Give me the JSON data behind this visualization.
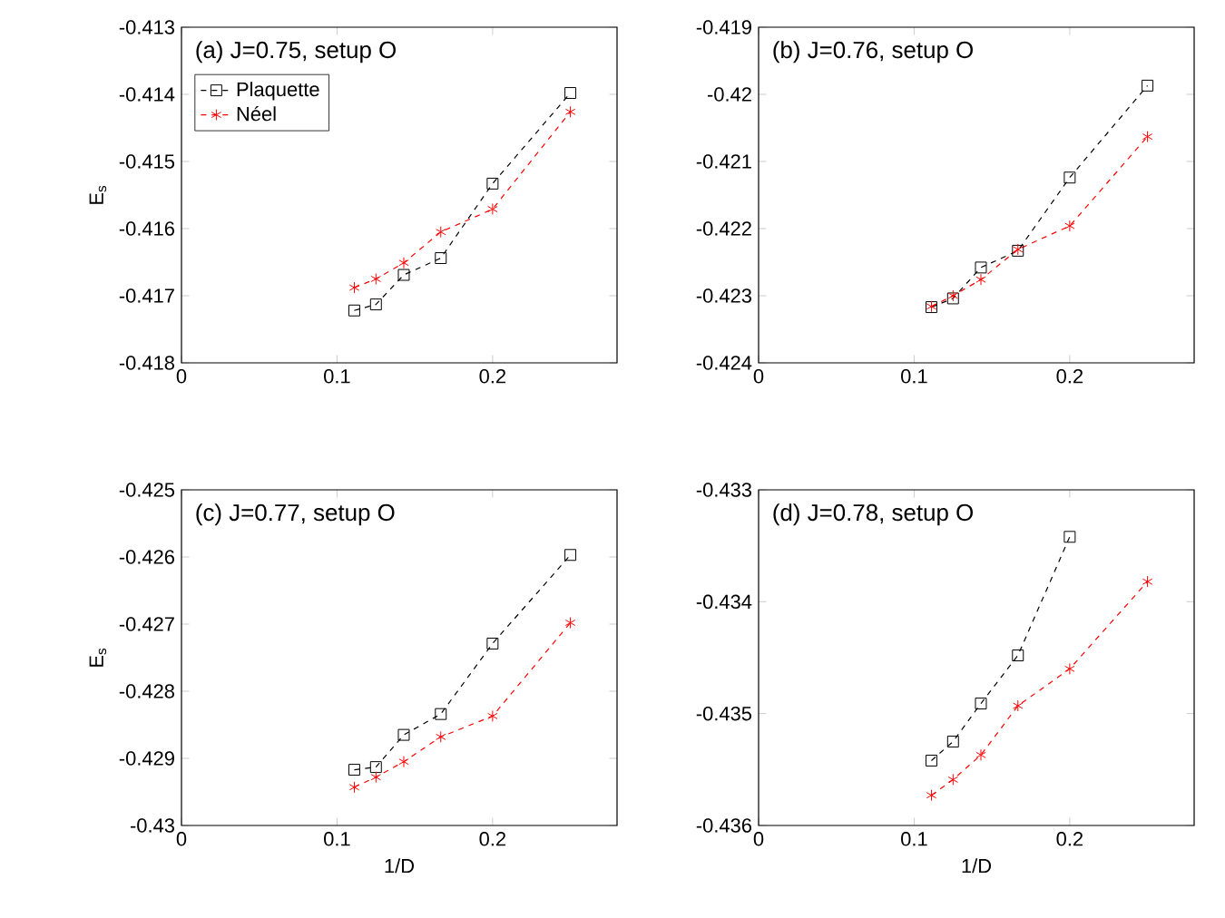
{
  "chart_data": [
    {
      "type": "line",
      "title": "(a) J=0.75, setup O",
      "ylabel": "E$_{s}$",
      "x": [
        0.1111,
        0.125,
        0.1429,
        0.1667,
        0.2,
        0.25
      ],
      "xlim": [
        0,
        0.28
      ],
      "xticks": [
        0,
        0.1,
        0.2
      ],
      "ylim": [
        -0.418,
        -0.413
      ],
      "yticks": [
        -0.418,
        -0.417,
        -0.416,
        -0.415,
        -0.414,
        -0.413
      ],
      "line_style": "dashed",
      "legend": "top left",
      "series": [
        {
          "name": "Plaquette",
          "color": "#000000",
          "marker": "square",
          "values": [
            -0.41722,
            -0.41713,
            -0.41669,
            -0.41644,
            -0.41533,
            -0.41398
          ]
        },
        {
          "name": "Néel",
          "color": "#ff0000",
          "marker": "cross",
          "values": [
            -0.41688,
            -0.41675,
            -0.41651,
            -0.41605,
            -0.41571,
            -0.41426
          ]
        }
      ]
    },
    {
      "type": "line",
      "title": "(b) J=0.76, setup O",
      "x": [
        0.1111,
        0.125,
        0.1429,
        0.1667,
        0.2,
        0.25
      ],
      "xlim": [
        0,
        0.28
      ],
      "xticks": [
        0,
        0.1,
        0.2
      ],
      "ylim": [
        -0.424,
        -0.419
      ],
      "yticks": [
        -0.424,
        -0.423,
        -0.422,
        -0.421,
        -0.42,
        -0.419
      ],
      "line_style": "dashed",
      "series": [
        {
          "color": "#000000",
          "marker": "square",
          "values": [
            -0.42317,
            -0.42304,
            -0.42258,
            -0.42233,
            -0.42124,
            -0.41987
          ]
        },
        {
          "color": "#ff0000",
          "marker": "cross",
          "values": [
            -0.42316,
            -0.423,
            -0.42276,
            -0.42231,
            -0.42196,
            -0.42063
          ]
        }
      ]
    },
    {
      "type": "line",
      "title": "(c) J=0.77, setup O",
      "ylabel": "E$_{s}$",
      "xlabel": "1/D",
      "x": [
        0.1111,
        0.125,
        0.1429,
        0.1667,
        0.2,
        0.25
      ],
      "xlim": [
        0,
        0.28
      ],
      "xticks": [
        0,
        0.1,
        0.2
      ],
      "ylim": [
        -0.43,
        -0.425
      ],
      "yticks": [
        -0.43,
        -0.429,
        -0.428,
        -0.427,
        -0.426,
        -0.425
      ],
      "line_style": "dashed",
      "series": [
        {
          "color": "#000000",
          "marker": "square",
          "values": [
            -0.42917,
            -0.42913,
            -0.42865,
            -0.42834,
            -0.42729,
            -0.42597
          ]
        },
        {
          "color": "#ff0000",
          "marker": "cross",
          "values": [
            -0.42943,
            -0.42928,
            -0.42905,
            -0.42868,
            -0.42837,
            -0.42698
          ]
        }
      ]
    },
    {
      "type": "line",
      "title": "(d) J=0.78, setup O",
      "xlabel": "1/D",
      "x": [
        0.1111,
        0.125,
        0.1429,
        0.1667,
        0.2,
        0.25
      ],
      "xlim": [
        0,
        0.28
      ],
      "xticks": [
        0,
        0.1,
        0.2
      ],
      "ylim": [
        -0.436,
        -0.433
      ],
      "yticks": [
        -0.436,
        -0.435,
        -0.434,
        -0.433
      ],
      "line_style": "dashed",
      "series": [
        {
          "color": "#000000",
          "marker": "square",
          "values": [
            -0.43542,
            -0.43525,
            -0.43491,
            -0.43448,
            -0.43342,
            null
          ]
        },
        {
          "color": "#ff0000",
          "marker": "cross",
          "values": [
            -0.43573,
            -0.43559,
            -0.43537,
            -0.43493,
            -0.4346,
            -0.43382
          ]
        }
      ]
    }
  ]
}
